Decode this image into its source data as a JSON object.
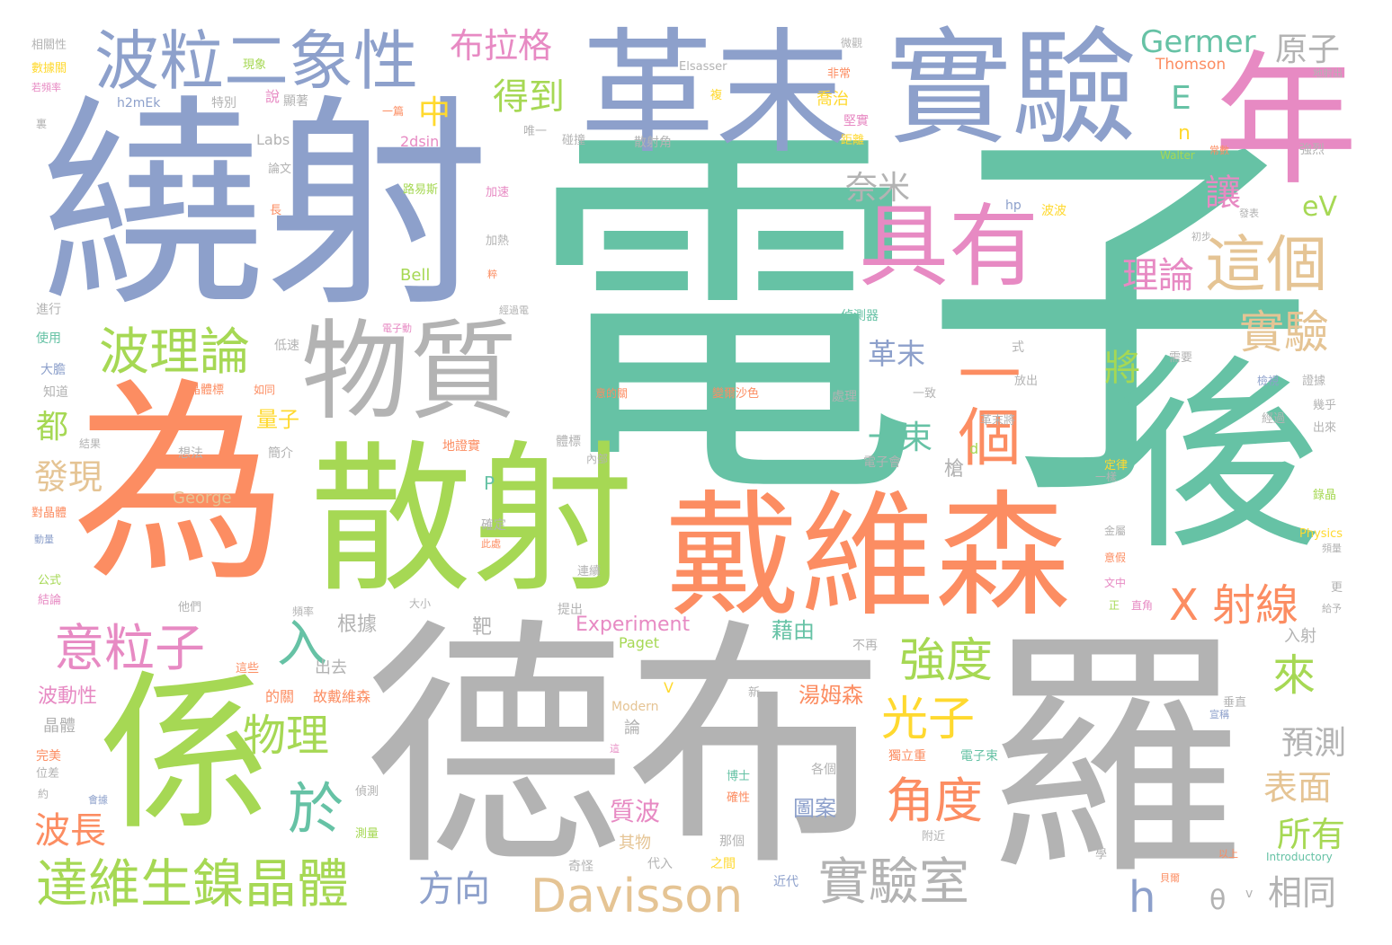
{
  "palette": {
    "teal": "#66c2a5",
    "orange": "#fc8d62",
    "blue": "#8da0cb",
    "pink": "#e78ac3",
    "green": "#a6d854",
    "yellow": "#ffd92f",
    "tan": "#e5c494",
    "gray": "#b3b3b3"
  },
  "words": {
    "dianzi": "電子",
    "debuluo": "德布",
    "luo": "羅",
    "raoshe": "繞射",
    "wei": "為",
    "sanshe": "散射",
    "gemo": "革末",
    "shiyan": "實驗",
    "daiweisen": "戴維森",
    "hou": "後",
    "nian": "年",
    "xi": "係",
    "wuzhi": "物質",
    "boli": "波粒二象性",
    "juyou": "具有",
    "yige": "一個",
    "zhege": "這個",
    "bolilun": "波理論",
    "yilizi": "意粒子",
    "dawei": "達維生鎳晶體",
    "davisson": "Davisson",
    "shiyanshi": "實驗室",
    "qiangdu": "強度",
    "guangzi": "光子",
    "jiaodu": "角度",
    "xshexian": "X 射線",
    "germer": "Germer",
    "yuanzi": "原子",
    "bulage": "布拉格",
    "dedao": "得到",
    "naimi": "奈米",
    "lilun": "理論",
    "shiyan2": "實驗",
    "wuli": "物理",
    "yu": "於",
    "ru": "入",
    "fangxiang": "方向",
    "bochang": "波長",
    "faxian": "發現",
    "dou": "都",
    "gemo2": "革末",
    "yishu": "一束",
    "lai": "來",
    "yuce": "預測",
    "biaomian": "表面",
    "suoyou": "所有",
    "xiangtong": "相同",
    "h": "h",
    "theta": "θ",
    "ev": "eV",
    "e": "E",
    "n": "n",
    "rang": "讓",
    "jiang": "將",
    "zhong": "中",
    "tangmusen": "湯姆森",
    "experiment": "Experiment",
    "jieyou": "藉由",
    "zhibo": "質波",
    "tuan": "圖案",
    "liangzi": "量子",
    "qiang": "槍",
    "gengju": "根據",
    "ba": "靶",
    "chuqu": "出去",
    "thomson": "Thomson",
    "elsasser": "Elsasser",
    "h2mek": "h2mEk",
    "labs": "Labs",
    "twodsin": "2dsin",
    "bell": "Bell",
    "george": "George",
    "paget": "Paget",
    "modern": "Modern",
    "walter": "Walter",
    "hp": "hp",
    "physics": "Physics",
    "introductory": "Introductory",
    "d": "d",
    "p": "P",
    "v": "V",
    "v2": "v",
    "xianxiang": "現象",
    "shuo": "說",
    "xianzhu": "顯著",
    "tebie": "特別",
    "yixi": "一篇",
    "weiyi": "唯一",
    "pengzhuang": "碰撞",
    "sansejiao": "散射角",
    "qiaozhi": "喬治",
    "jianshi": "堅實",
    "juli": "距離",
    "weiguan": "微觀",
    "feichang": "非常",
    "fu": "複",
    "qianglie": "強烈",
    "changshu": "常數",
    "fabiao": "發表",
    "chubu": "初步",
    "jiasu": "加速",
    "jiare": "加熱",
    "lubosi": "路易斯",
    "lunwen": "論文",
    "chang": "長",
    "bobo": "波波",
    "jingguodian": "經過電",
    "shi": "式",
    "jinxing": "進行",
    "shiyong": "使用",
    "dadan": "大膽",
    "zhidao": "知道",
    "disu": "低速",
    "jingtibiao": "晶體標",
    "ruto": "如同",
    "tiaosu": "電子動",
    "zhencheqi": "偵測器",
    "chuli": "處理",
    "yizhi": "一致",
    "fangchu": "放出",
    "xuyao": "需要",
    "jianshi2": "檢視",
    "jingguo": "經過",
    "zhengju": "證據",
    "jihu": "幾乎",
    "chulai": "出來",
    "gemojiang": "革末將",
    "dianzihui": "電子會",
    "dingly": "定律",
    "yiyang": "一樣",
    "jingjing": "錄晶",
    "jinshu": "金屬",
    "yijia": "意假",
    "wenzhong": "文中",
    "zheng": "正",
    "zhijiao": "直角",
    "geng": "更",
    "jiyu": "給予",
    "rushe": "入射",
    "chuizhi": "垂直",
    "yiqian": "以上",
    "xue": "學",
    "beier": "貝爾",
    "jinnei": "近代",
    "dailu": "代入",
    "zhijian": "之間",
    "nage": "那個",
    "fujin": "附近",
    "dulizhe": "獨立重",
    "dianzishu": "電子束",
    "gege": "各個",
    "boshi": "博士",
    "quexing": "確性",
    "buzai": "不再",
    "xin": "新",
    "xuancheng": "宣稱",
    "zhexie": "這些",
    "debuguan": "的關",
    "gudaiweisen": "故戴維森",
    "bodongxing": "波動性",
    "jingti": "晶體",
    "wanmei": "完美",
    "weicha": "位差",
    "yue": "約",
    "huiju": "會據",
    "cheliang": "測量",
    "zhenche": "偵測",
    "qiguai": "奇怪",
    "qiwu": "其物",
    "lun": "論",
    "tiao": "這",
    "xiangguanxing": "相關性",
    "shujuguan": "數據關",
    "ruoyin": "若頻率",
    "li": "裏",
    "dijue": "地射出",
    "gongshi": "公式",
    "jielun": "結論",
    "tamen": "他們",
    "pinlv": "頻率",
    "daxiao": "大小",
    "tichu": "提出",
    "lianxu": "連續",
    "queding": "確定",
    "cichu": "此處",
    "neibu": "內部",
    "tibiao": "體標",
    "dizhengshi": "地證實",
    "xiangfa": "想法",
    "jianjie": "簡介",
    "jieguo": "結果",
    "duijingti": "對晶體",
    "dongliang": "動量",
    "yideguan": "意的關",
    "biandesuo": "變爾沙色",
    "jingguodian2": "經過電",
    "dianzidong": "電子動",
    "song": "粹",
    "shangfang": "頻量"
  }
}
